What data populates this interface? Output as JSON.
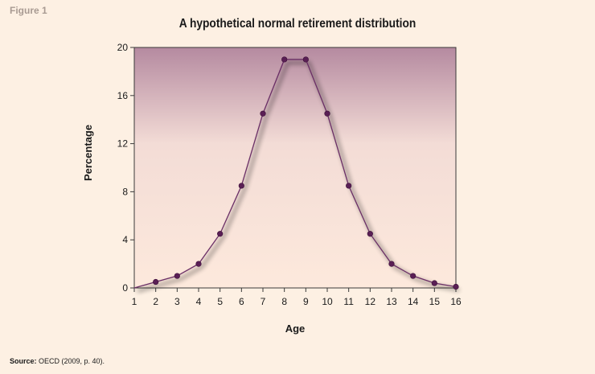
{
  "figure_label": "Figure 1",
  "source": {
    "label": "Source:",
    "text": " OECD (2009, p. 40)."
  },
  "colors": {
    "line": "#6a2e66",
    "marker": "#5a1f55",
    "plot_top": "#b58aa0",
    "plot_bottom": "#fde9dc",
    "background": "#fdf0e3"
  },
  "chart_data": {
    "type": "line",
    "title": "A hypothetical normal retirement distribution",
    "xlabel": "Age",
    "ylabel": "Percentage",
    "xlim": [
      1,
      16
    ],
    "ylim": [
      0,
      20
    ],
    "x_ticks": [
      1,
      2,
      3,
      4,
      5,
      6,
      7,
      8,
      9,
      10,
      11,
      12,
      13,
      14,
      15,
      16
    ],
    "y_ticks": [
      0,
      4,
      8,
      12,
      16,
      20
    ],
    "grid": false,
    "legend": "none",
    "x": [
      1,
      2,
      3,
      4,
      5,
      6,
      7,
      8,
      9,
      10,
      11,
      12,
      13,
      14,
      15,
      16
    ],
    "values": [
      0,
      0.5,
      1,
      2,
      4.5,
      8.5,
      14.5,
      19,
      19,
      14.5,
      8.5,
      4.5,
      2,
      1,
      0.4,
      0.1
    ],
    "markers_from_x": 2
  }
}
